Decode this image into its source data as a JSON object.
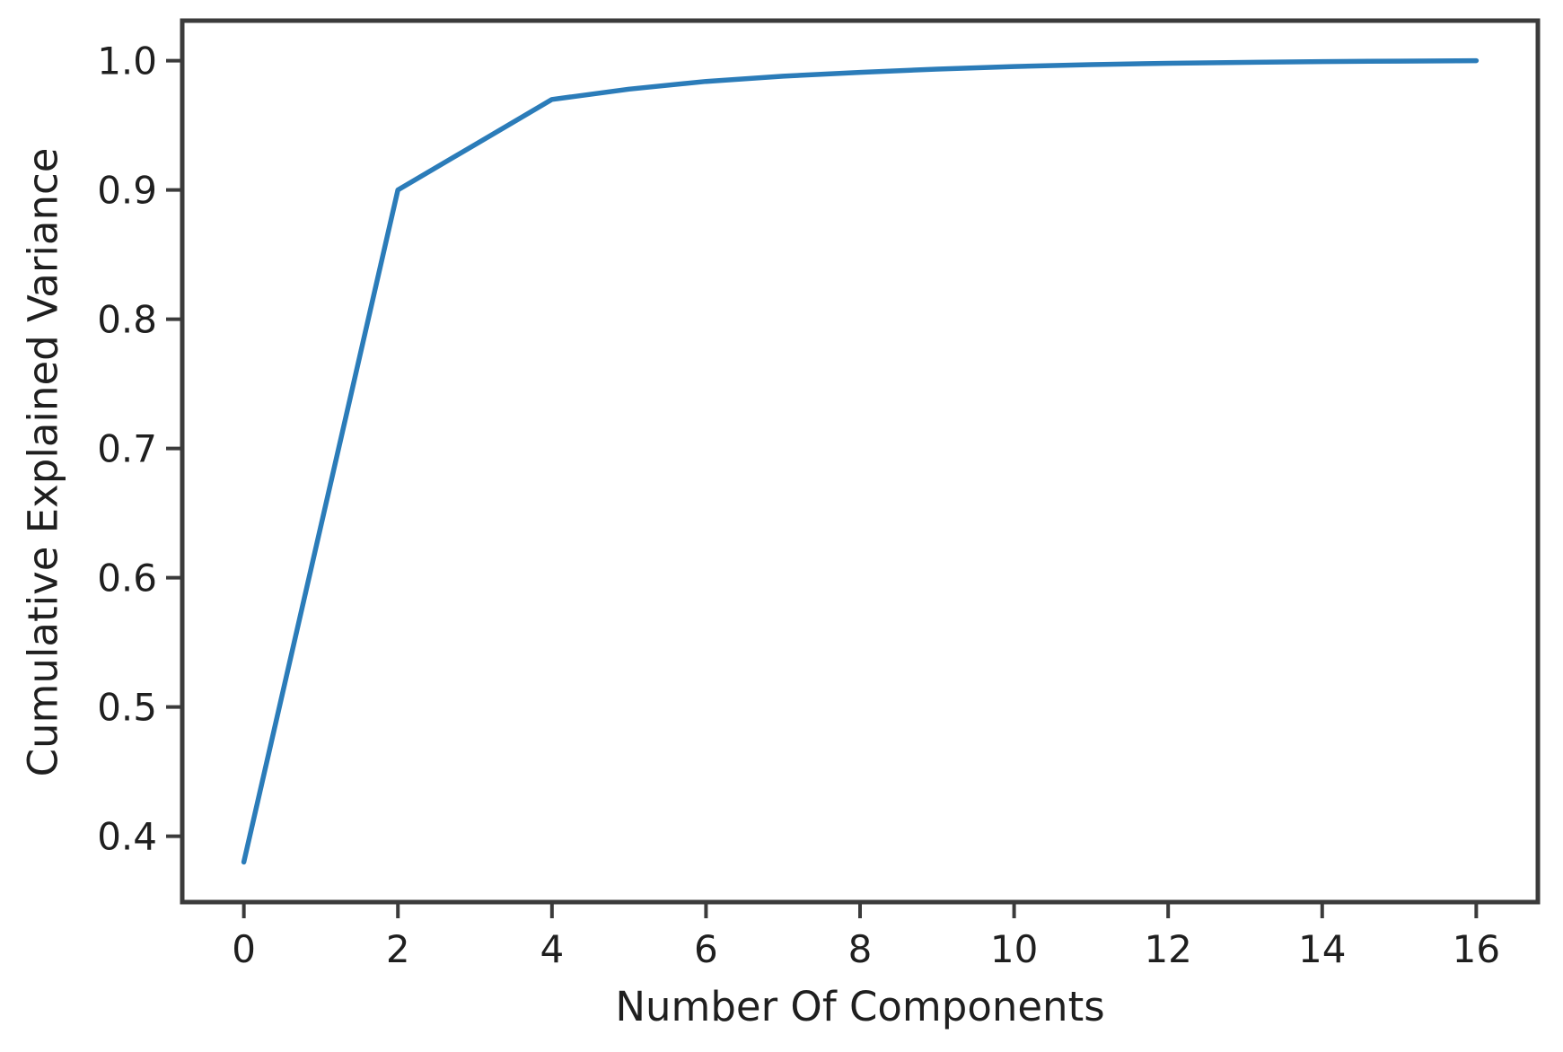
{
  "figure": {
    "background": "#ffffff",
    "spine_color": "#3b3b3b",
    "text_color": "#1f1f1f"
  },
  "chart_data": {
    "type": "line",
    "xlabel": "Number Of Components",
    "ylabel": "Cumulative Explained Variance",
    "x": [
      0,
      1,
      2,
      3,
      4,
      5,
      6,
      7,
      8,
      9,
      10,
      11,
      12,
      13,
      14,
      15,
      16
    ],
    "y": [
      0.38,
      0.64,
      0.9,
      0.935,
      0.97,
      0.978,
      0.984,
      0.988,
      0.991,
      0.9935,
      0.9955,
      0.997,
      0.998,
      0.9987,
      0.9993,
      0.9997,
      1.0
    ],
    "xticks": {
      "values": [
        0,
        2,
        4,
        6,
        8,
        10,
        12,
        14,
        16
      ],
      "labels": [
        "0",
        "2",
        "4",
        "6",
        "8",
        "10",
        "12",
        "14",
        "16"
      ]
    },
    "yticks": {
      "values": [
        0.4,
        0.5,
        0.6,
        0.7,
        0.8,
        0.9,
        1.0
      ],
      "labels": [
        "0.4",
        "0.5",
        "0.6",
        "0.7",
        "0.8",
        "0.9",
        "1.0"
      ]
    },
    "xlim": [
      -0.8,
      16.8
    ],
    "ylim": [
      0.349,
      1.031
    ],
    "line_color": "#2b7cb9",
    "line_width": 5.5,
    "grid": false,
    "legend": "none",
    "markers": "none"
  }
}
